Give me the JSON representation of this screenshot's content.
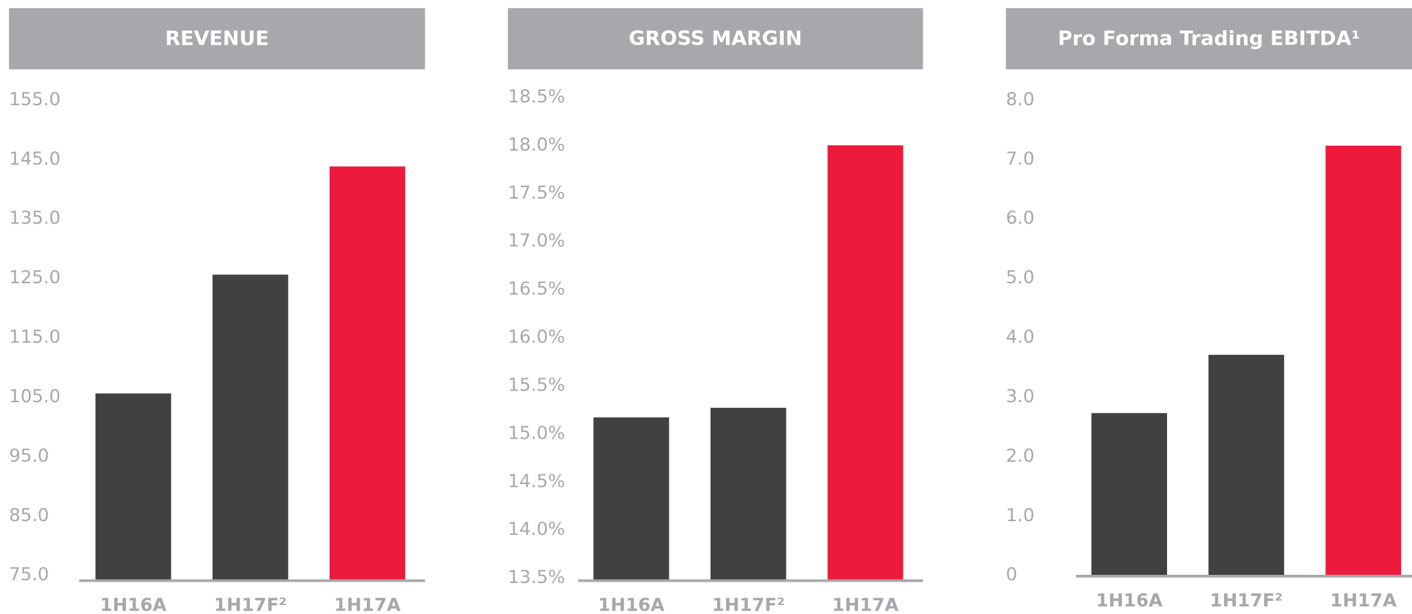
{
  "chart_data": [
    {
      "type": "bar",
      "title": "REVENUE",
      "categories": [
        "1H16A",
        "1H17F²",
        "1H17A"
      ],
      "values": [
        105.6,
        125.6,
        143.8
      ],
      "colors": [
        "#414042",
        "#414042",
        "#ee1a3b"
      ],
      "ylim": [
        75,
        155
      ],
      "yticks": [
        {
          "value": 75,
          "label": "75.0"
        },
        {
          "value": 85,
          "label": "85.0"
        },
        {
          "value": 95,
          "label": "95.0"
        },
        {
          "value": 105,
          "label": "105.0"
        },
        {
          "value": 115,
          "label": "115.0"
        },
        {
          "value": 125,
          "label": "125.0"
        },
        {
          "value": 135,
          "label": "135.0"
        },
        {
          "value": 145,
          "label": "145.0"
        },
        {
          "value": 155,
          "label": "155.0"
        }
      ]
    },
    {
      "type": "bar",
      "title": "GROSS MARGIN",
      "categories": [
        "1H16A",
        "1H17F²",
        "1H17A"
      ],
      "values": [
        15.17,
        15.27,
        18.0
      ],
      "colors": [
        "#414042",
        "#414042",
        "#ee1a3b"
      ],
      "ylim": [
        13.5,
        18.5
      ],
      "yticks": [
        {
          "value": 13.5,
          "label": "13.5%"
        },
        {
          "value": 14,
          "label": "14.0%"
        },
        {
          "value": 14.5,
          "label": "14.5%"
        },
        {
          "value": 15,
          "label": "15.0%"
        },
        {
          "value": 15.5,
          "label": "15.5%"
        },
        {
          "value": 16,
          "label": "16.0%"
        },
        {
          "value": 16.5,
          "label": "16.5%"
        },
        {
          "value": 17,
          "label": "17.0%"
        },
        {
          "value": 17.5,
          "label": "17.5%"
        },
        {
          "value": 18,
          "label": "18.0%"
        },
        {
          "value": 18.5,
          "label": "18.5%"
        }
      ]
    },
    {
      "type": "bar",
      "title": "Pro Forma Trading EBITDA¹",
      "categories": [
        "1H16A",
        "1H17F²",
        "1H17A"
      ],
      "values": [
        2.73,
        3.71,
        7.23
      ],
      "colors": [
        "#414042",
        "#414042",
        "#ee1a3b"
      ],
      "ylim": [
        0,
        8
      ],
      "yticks": [
        0,
        {
          "value": 1,
          "label": "1.0"
        },
        {
          "value": 2,
          "label": "2.0"
        },
        {
          "value": 3,
          "label": "3.0"
        },
        {
          "value": 4,
          "label": "4.0"
        },
        {
          "value": 5,
          "label": "5.0"
        },
        {
          "value": 6,
          "label": "6.0"
        },
        {
          "value": 7,
          "label": "7.0"
        },
        {
          "value": 8,
          "label": "8.0"
        }
      ]
    }
  ]
}
